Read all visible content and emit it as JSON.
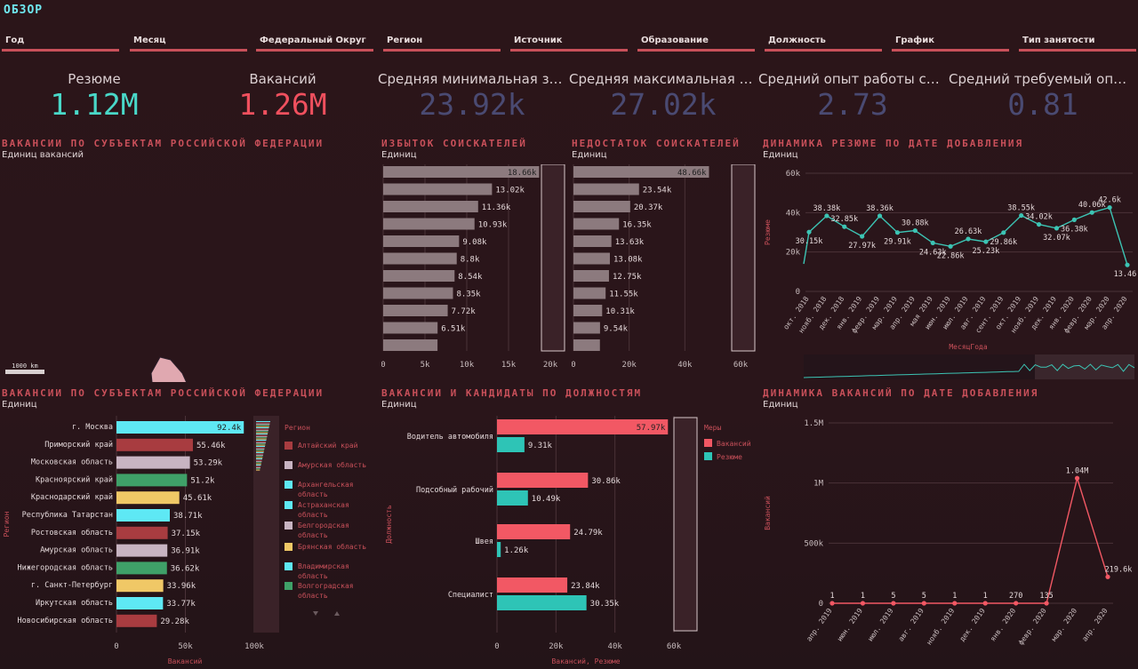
{
  "header": {
    "title": "ОБЗОР"
  },
  "filters": [
    "Год",
    "Месяц",
    "Федеральный Округ",
    "Регион",
    "Источник",
    "Образование",
    "Должность",
    "График",
    "Тип занятости"
  ],
  "kpis": [
    {
      "label": "Резюме",
      "value": "1.12M",
      "color": "#49d8c8"
    },
    {
      "label": "Вакансий",
      "value": "1.26M",
      "color": "#f0505e"
    },
    {
      "label": "Средняя минимальная зарп...",
      "value": "23.92k",
      "color": "#4a4a72"
    },
    {
      "label": "Средняя максимальная зарп...",
      "value": "27.02k",
      "color": "#4a4a72"
    },
    {
      "label": "Средний опыт работы соиск...",
      "value": "2.73",
      "color": "#4a4a72"
    },
    {
      "label": "Средний требуемый опыт ра...",
      "value": "0.81",
      "color": "#4a4a72"
    }
  ],
  "map": {
    "title": "ВАКАНСИИ ПО СУБЪЕКТАМ РОССИЙСКОЙ ФЕДЕРАЦИИ",
    "subtitle": "Единиц вакансий",
    "scale_label": "1000 km"
  },
  "colors": {
    "bar_gray": "#8c7a7e",
    "accent_red": "#c9505a",
    "vacancy": "#f25864",
    "resume": "#2ec4b6",
    "line": "#3cc4b4"
  },
  "chart_data": [
    {
      "id": "surplus",
      "type": "bar",
      "orientation": "horizontal",
      "title": "ИЗБЫТОК СОИСКАТЕЛЕЙ",
      "subtitle": "Единиц",
      "values": [
        18660,
        13020,
        11360,
        10930,
        9080,
        8800,
        8540,
        8350,
        7720,
        6510,
        6500
      ],
      "labels": [
        "18.66k",
        "13.02k",
        "11.36k",
        "10.93k",
        "9.08k",
        "8.8k",
        "8.54k",
        "8.35k",
        "7.72k",
        "6.51k",
        ""
      ],
      "xlim": [
        0,
        20000
      ],
      "xticks": [
        0,
        5000,
        10000,
        15000,
        20000
      ],
      "xtick_labels": [
        "0",
        "5k",
        "10k",
        "15k",
        "20k"
      ]
    },
    {
      "id": "deficit",
      "type": "bar",
      "orientation": "horizontal",
      "title": "НЕДОСТАТОК СОИСКАТЕЛЕЙ",
      "subtitle": "Единиц",
      "values": [
        48660,
        23540,
        20370,
        16350,
        13630,
        13080,
        12750,
        11550,
        10310,
        9540,
        9500
      ],
      "labels": [
        "48.66k",
        "23.54k",
        "20.37k",
        "16.35k",
        "13.63k",
        "13.08k",
        "12.75k",
        "11.55k",
        "10.31k",
        "9.54k",
        ""
      ],
      "xlim": [
        0,
        60000
      ],
      "xticks": [
        0,
        20000,
        40000,
        60000
      ],
      "xtick_labels": [
        "0",
        "20k",
        "40k",
        "60k"
      ]
    },
    {
      "id": "resume_trend",
      "type": "line",
      "title": "ДИНАМИКА РЕЗЮМЕ ПО ДАТЕ ДОБАВЛЕНИЯ",
      "subtitle": "Единиц",
      "xlabel": "МесяцГода",
      "ylabel": "Резюме",
      "ylim": [
        0,
        60000
      ],
      "yticks": [
        0,
        20000,
        40000,
        60000
      ],
      "ytick_labels": [
        "0",
        "20k",
        "40k",
        "60k"
      ],
      "categories": [
        "окт. 2018",
        "нояб. 2018",
        "дек. 2018",
        "янв. 2019",
        "февр. 2019",
        "мар. 2019",
        "апр. 2019",
        "мая 2019",
        "июн. 2019",
        "июл. 2019",
        "авг. 2019",
        "сент. 2019",
        "окт. 2019",
        "нояб. 2019",
        "дек. 2019",
        "янв. 2020",
        "февр. 2020",
        "мар. 2020",
        "апр. 2020"
      ],
      "values": [
        30150,
        38380,
        32850,
        27970,
        38360,
        29910,
        30880,
        24630,
        22860,
        26630,
        25230,
        29860,
        38550,
        34020,
        32070,
        36380,
        40060,
        42600,
        13460
      ],
      "point_labels": [
        "30.15k",
        "38.38k",
        "32.85k",
        "27.97k",
        "38.36k",
        "29.91k",
        "30.88k",
        "24.63k",
        "22.86k",
        "26.63k",
        "25.23k",
        "29.86k",
        "38.55k",
        "34.02k",
        "32.07k",
        "36.38k",
        "40.06k",
        "42.6k",
        "13.46k"
      ]
    },
    {
      "id": "regions",
      "type": "bar",
      "orientation": "horizontal",
      "title": "ВАКАНСИИ ПО СУБЪЕКТАМ РОССИЙСКОЙ ФЕДЕРАЦИИ",
      "subtitle": "Единиц",
      "xlabel": "Вакансий",
      "ylabel": "Регион",
      "categories": [
        "г. Москва",
        "Приморский край",
        "Московская область",
        "Красноярский край",
        "Краснодарский край",
        "Республика Татарстан",
        "Ростовская область",
        "Амурская область",
        "Нижегородская область",
        "г. Санкт-Петербург",
        "Иркутская область",
        "Новосибирская область"
      ],
      "values": [
        92400,
        55460,
        53290,
        51200,
        45610,
        38710,
        37150,
        36910,
        36620,
        33960,
        33770,
        29280
      ],
      "labels": [
        "92.4k",
        "55.46k",
        "53.29k",
        "51.2k",
        "45.61k",
        "38.71k",
        "37.15k",
        "36.91k",
        "36.62k",
        "33.96k",
        "33.77k",
        "29.28k"
      ],
      "bar_colors": [
        "#5ee8f4",
        "#a83c40",
        "#c8b4c2",
        "#3fa068",
        "#f0c866",
        "#5ee8f4",
        "#a83c40",
        "#c8b4c2",
        "#3fa068",
        "#f0c866",
        "#5ee8f4",
        "#a83c40"
      ],
      "xlim": [
        0,
        100000
      ],
      "xticks": [
        0,
        50000,
        100000
      ],
      "xtick_labels": [
        "0",
        "50k",
        "100k"
      ],
      "legend_title": "Регион",
      "legend": [
        {
          "name": "Алтайский край",
          "color": "#a83c40"
        },
        {
          "name": "Амурская область",
          "color": "#c8b4c2"
        },
        {
          "name": "Архангельская область",
          "color": "#5ee8f4"
        },
        {
          "name": "Астраханская область",
          "color": "#5ee8f4"
        },
        {
          "name": "Белгородская область",
          "color": "#c8b4c2"
        },
        {
          "name": "Брянская область",
          "color": "#f0c866"
        },
        {
          "name": "Владимирская область",
          "color": "#5ee8f4"
        },
        {
          "name": "Волгоградская область",
          "color": "#3fa068"
        }
      ]
    },
    {
      "id": "positions",
      "type": "bar",
      "orientation": "horizontal",
      "title": "ВАКАНСИИ И КАНДИДАТЫ ПО ДОЛЖНОСТЯМ",
      "subtitle": "Единиц",
      "xlabel": "Вакансий, Резюме",
      "ylabel": "Должность",
      "categories": [
        "Водитель автомобиля",
        "Подсобный рабочий",
        "Швея",
        "Специалист"
      ],
      "series": [
        {
          "name": "Вакансий",
          "color": "#f25864",
          "values": [
            57970,
            30860,
            24790,
            23840
          ],
          "labels": [
            "57.97k",
            "30.86k",
            "24.79k",
            "23.84k"
          ]
        },
        {
          "name": "Резюме",
          "color": "#2ec4b6",
          "values": [
            9310,
            10490,
            1260,
            30350
          ],
          "labels": [
            "9.31k",
            "10.49k",
            "1.26k",
            "30.35k"
          ]
        }
      ],
      "xlim": [
        0,
        60000
      ],
      "xticks": [
        0,
        20000,
        40000,
        60000
      ],
      "xtick_labels": [
        "0",
        "20k",
        "40k",
        "60k"
      ],
      "legend_title": "Меры"
    },
    {
      "id": "vacancy_trend",
      "type": "line",
      "title": "ДИНАМИКА ВАКАНСИЙ ПО ДАТЕ ДОБАВЛЕНИЯ",
      "subtitle": "Единиц",
      "xlabel": "МесяцГода",
      "ylabel": "Вакансий",
      "ylim": [
        0,
        1500000
      ],
      "yticks": [
        0,
        500000,
        1000000,
        1500000
      ],
      "ytick_labels": [
        "0",
        "500k",
        "1M",
        "1.5M"
      ],
      "categories": [
        "апр. 2019",
        "июн. 2019",
        "июл. 2019",
        "авг. 2019",
        "нояб. 2019",
        "дек. 2019",
        "янв. 2020",
        "февр. 2020",
        "мар. 2020",
        "апр. 2020"
      ],
      "values": [
        1,
        1,
        5,
        5,
        1,
        1,
        270,
        135,
        1040000,
        219600
      ],
      "point_labels": [
        "1",
        "1",
        "5",
        "5",
        "1",
        "1",
        "270",
        "135",
        "1.04M",
        "219.6k"
      ]
    }
  ]
}
